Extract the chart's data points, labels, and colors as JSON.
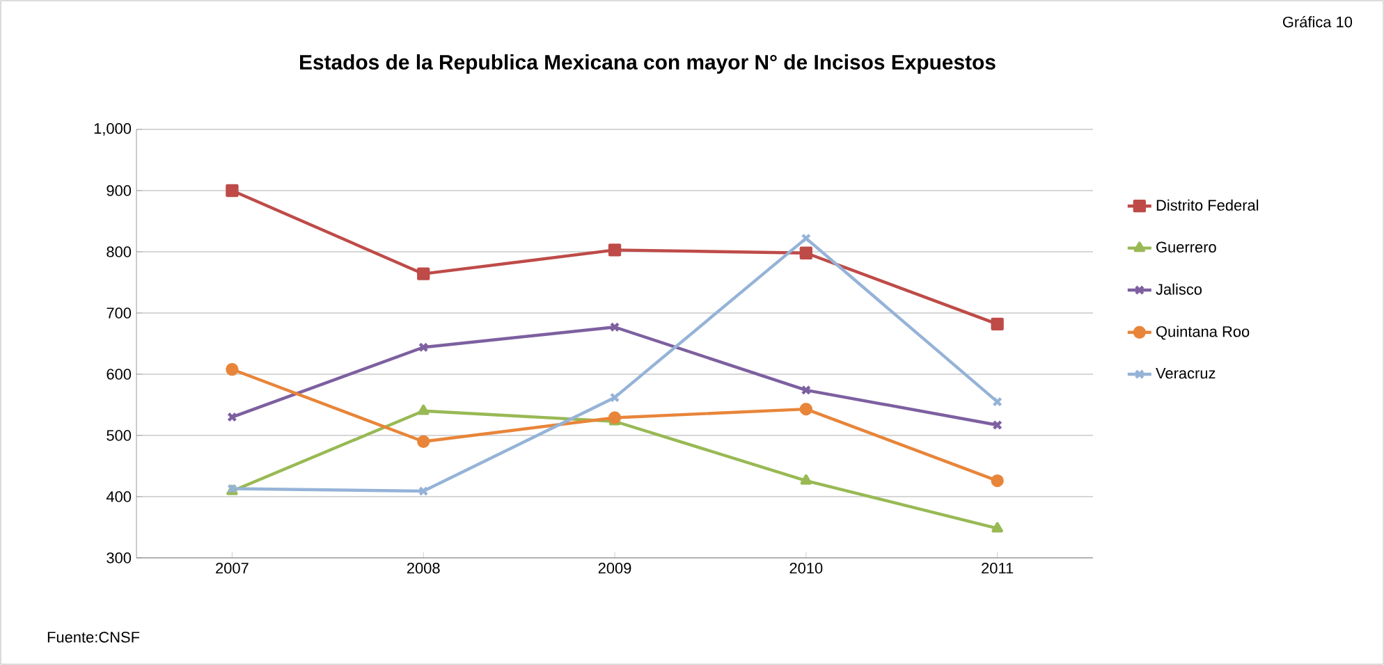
{
  "chart_data": {
    "type": "line",
    "title": "Estados de la Republica Mexicana con mayor N° de Incisos Expuestos",
    "categories": [
      "2007",
      "2008",
      "2009",
      "2010",
      "2011"
    ],
    "series": [
      {
        "name": "Distrito Federal",
        "color": "#be4b48",
        "marker": "square",
        "values": [
          900,
          764,
          803,
          798,
          682
        ]
      },
      {
        "name": "Guerrero",
        "color": "#98b954",
        "marker": "triangle",
        "values": [
          409,
          540,
          523,
          426,
          348
        ]
      },
      {
        "name": "Jalisco",
        "color": "#7d60a0",
        "marker": "cross",
        "values": [
          530,
          644,
          677,
          574,
          517
        ]
      },
      {
        "name": "Quintana Roo",
        "color": "#e8853a",
        "marker": "circle",
        "values": [
          608,
          490,
          529,
          543,
          426
        ]
      },
      {
        "name": "Veracruz",
        "color": "#95b3d7",
        "marker": "cross",
        "values": [
          413,
          409,
          562,
          822,
          555
        ]
      }
    ],
    "ylim": [
      300,
      1000
    ],
    "yticks": [
      300,
      400,
      500,
      600,
      700,
      800,
      900,
      {
        "value": 1000,
        "label": "1,000"
      }
    ],
    "grid": "y",
    "legend": "right",
    "line_style": "solid",
    "annotations": [
      "Gráfica 10",
      "Fuente:CNSF"
    ]
  }
}
